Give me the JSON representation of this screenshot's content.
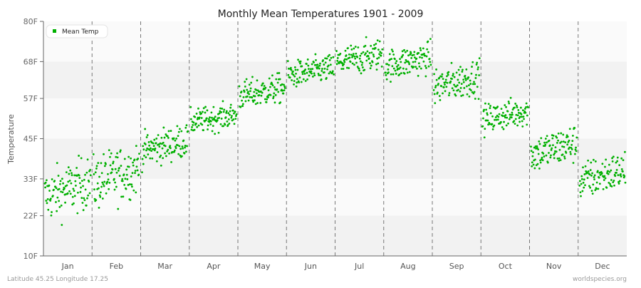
{
  "chart_data": {
    "type": "scatter",
    "title": "Monthly Mean Temperatures 1901 - 2009",
    "xlabel": "",
    "ylabel": "Temperature",
    "ylim": [
      10,
      80
    ],
    "y_ticks": [
      "80F",
      "68F",
      "57F",
      "45F",
      "33F",
      "22F",
      "10F"
    ],
    "y_tick_values": [
      80,
      68,
      57,
      45,
      33,
      22,
      10
    ],
    "categories": [
      "Jan",
      "Feb",
      "Mar",
      "Apr",
      "May",
      "Jun",
      "Jul",
      "Aug",
      "Sep",
      "Oct",
      "Nov",
      "Dec"
    ],
    "years": [
      1901,
      2009
    ],
    "grid": "horizontal bands, dashed vertical month separators",
    "legend": {
      "position": "top-left",
      "entries": [
        "Mean Temp"
      ]
    },
    "series": [
      {
        "name": "Mean Temp",
        "color": "#00b000",
        "monthly_mean": [
          30,
          34,
          43,
          51,
          59,
          65,
          69,
          68,
          62,
          52,
          42,
          34
        ],
        "monthly_min": [
          18,
          21,
          34,
          46,
          53,
          59,
          62,
          62,
          53,
          45,
          33,
          26
        ],
        "monthly_max": [
          41,
          45,
          49,
          57,
          66,
          71,
          76,
          76,
          69,
          58,
          50,
          43
        ]
      }
    ]
  },
  "footer": {
    "location": "Latitude 45.25 Longitude 17.25",
    "source": "worldspecies.org"
  }
}
